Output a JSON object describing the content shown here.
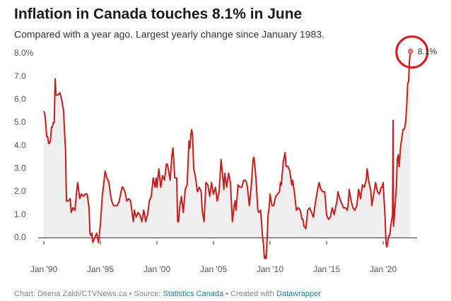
{
  "chart_data": {
    "type": "area-line",
    "title": "Inflation in Canada touches 8.1% in June",
    "subtitle": "Compared with a year ago. Largest yearly change since January 1983.",
    "annotation": "8.1%",
    "color": "#c71e1d",
    "fill": "#efefef",
    "grid": false,
    "x": [
      1990.0,
      1990.08,
      1990.17,
      1990.25,
      1990.33,
      1990.42,
      1990.5,
      1990.58,
      1990.67,
      1990.75,
      1990.83,
      1990.92,
      1991.0,
      1991.08,
      1991.25,
      1991.42,
      1991.58,
      1991.75,
      1991.83,
      1991.92,
      1992.0,
      1992.17,
      1992.33,
      1992.42,
      1992.58,
      1992.75,
      1992.92,
      1993.0,
      1993.17,
      1993.33,
      1993.5,
      1993.67,
      1993.83,
      1994.0,
      1994.08,
      1994.17,
      1994.25,
      1994.33,
      1994.5,
      1994.67,
      1994.83,
      1994.92,
      1995.0,
      1995.17,
      1995.33,
      1995.42,
      1995.58,
      1995.75,
      1995.92,
      1996.0,
      1996.17,
      1996.33,
      1996.5,
      1996.67,
      1996.83,
      1996.92,
      1997.0,
      1997.17,
      1997.33,
      1997.5,
      1997.67,
      1997.83,
      1997.92,
      1998.0,
      1998.17,
      1998.33,
      1998.5,
      1998.67,
      1998.83,
      1998.92,
      1999.0,
      1999.17,
      1999.33,
      1999.5,
      1999.67,
      1999.83,
      1999.92,
      2000.0,
      2000.17,
      2000.33,
      2000.5,
      2000.67,
      2000.83,
      2000.92,
      2001.0,
      2001.17,
      2001.33,
      2001.42,
      2001.58,
      2001.75,
      2001.83,
      2001.92,
      2002.0,
      2002.17,
      2002.33,
      2002.5,
      2002.67,
      2002.83,
      2002.92,
      2003.0,
      2003.08,
      2003.17,
      2003.25,
      2003.42,
      2003.58,
      2003.75,
      2003.92,
      2004.0,
      2004.17,
      2004.33,
      2004.5,
      2004.67,
      2004.83,
      2004.92,
      2005.0,
      2005.17,
      2005.33,
      2005.5,
      2005.67,
      2005.83,
      2005.92,
      2006.0,
      2006.17,
      2006.33,
      2006.5,
      2006.67,
      2006.83,
      2006.92,
      2007.0,
      2007.17,
      2007.33,
      2007.5,
      2007.67,
      2007.83,
      2007.92,
      2008.0,
      2008.17,
      2008.33,
      2008.5,
      2008.58,
      2008.75,
      2008.83,
      2008.92,
      2009.0,
      2009.17,
      2009.33,
      2009.42,
      2009.5,
      2009.58,
      2009.67,
      2009.83,
      2009.92,
      2010.0,
      2010.17,
      2010.33,
      2010.5,
      2010.67,
      2010.83,
      2010.92,
      2011.0,
      2011.17,
      2011.33,
      2011.42,
      2011.58,
      2011.75,
      2011.92,
      2012.0,
      2012.17,
      2012.33,
      2012.5,
      2012.67,
      2012.83,
      2012.92,
      2013.0,
      2013.17,
      2013.33,
      2013.5,
      2013.67,
      2013.83,
      2013.92,
      2014.0,
      2014.17,
      2014.33,
      2014.5,
      2014.67,
      2014.83,
      2014.92,
      2015.0,
      2015.17,
      2015.33,
      2015.5,
      2015.67,
      2015.83,
      2015.92,
      2016.0,
      2016.17,
      2016.33,
      2016.5,
      2016.67,
      2016.83,
      2016.92,
      2017.0,
      2017.17,
      2017.33,
      2017.5,
      2017.67,
      2017.83,
      2017.92,
      2018.0,
      2018.17,
      2018.33,
      2018.5,
      2018.58,
      2018.75,
      2018.92,
      2019.0,
      2019.17,
      2019.33,
      2019.5,
      2019.67,
      2019.83,
      2019.92,
      2020.0,
      2020.17,
      2020.25,
      2020.33,
      2020.5,
      2020.58,
      2020.67,
      2020.83,
      2020.88,
      2020.92,
      2021.0,
      2021.17,
      2021.25,
      2021.33,
      2021.42,
      2021.5,
      2021.58,
      2021.67,
      2021.75,
      2021.83,
      2021.92,
      2022.0,
      2022.08,
      2022.17,
      2022.25,
      2022.33,
      2022.42
    ],
    "values": [
      5.5,
      5.4,
      5.0,
      4.4,
      4.4,
      4.1,
      4.1,
      4.2,
      4.8,
      4.8,
      5.0,
      5.0,
      6.9,
      6.2,
      6.2,
      6.3,
      6.0,
      5.5,
      4.6,
      3.8,
      1.6,
      1.6,
      1.7,
      1.1,
      1.3,
      1.2,
      2.1,
      2.4,
      1.7,
      1.9,
      1.8,
      1.9,
      1.9,
      1.3,
      0.2,
      0.1,
      0.2,
      -0.2,
      0.0,
      0.2,
      -0.2,
      0.2,
      0.6,
      1.8,
      2.5,
      2.9,
      2.6,
      2.4,
      1.8,
      1.6,
      1.4,
      1.4,
      1.4,
      1.6,
      2.0,
      2.2,
      2.2,
      2.0,
      1.6,
      1.7,
      1.6,
      1.0,
      0.7,
      1.2,
      0.9,
      1.1,
      1.0,
      0.7,
      1.2,
      1.0,
      0.7,
      1.0,
      1.6,
      1.8,
      2.6,
      2.2,
      2.6,
      2.2,
      3.0,
      2.2,
      2.7,
      2.5,
      3.2,
      3.2,
      3.0,
      2.5,
      3.6,
      3.9,
      2.6,
      2.6,
      0.7,
      0.7,
      1.3,
      1.8,
      1.1,
      2.1,
      2.3,
      4.2,
      3.9,
      4.5,
      4.7,
      4.3,
      3.0,
      2.6,
      2.0,
      2.2,
      2.0,
      1.2,
      0.7,
      2.4,
      2.3,
      1.8,
      2.4,
      2.1,
      1.9,
      2.2,
      1.6,
      2.0,
      3.4,
      2.6,
      2.1,
      2.8,
      2.2,
      2.8,
      2.4,
      0.7,
      1.4,
      1.6,
      1.2,
      2.3,
      2.2,
      2.2,
      2.5,
      2.5,
      2.4,
      2.2,
      1.4,
      2.2,
      3.4,
      3.5,
      2.6,
      2.0,
      1.2,
      1.1,
      1.2,
      0.1,
      -0.3,
      -0.9,
      -0.8,
      -0.9,
      1.0,
      1.3,
      1.9,
      1.4,
      1.4,
      1.8,
      1.9,
      2.0,
      2.4,
      2.3,
      3.3,
      3.7,
      3.1,
      3.1,
      2.9,
      2.3,
      2.5,
      1.9,
      1.2,
      1.3,
      1.2,
      0.8,
      0.8,
      0.5,
      0.4,
      1.2,
      1.3,
      1.1,
      0.9,
      1.2,
      1.5,
      2.0,
      2.4,
      2.1,
      2.0,
      2.0,
      1.5,
      1.0,
      0.8,
      0.9,
      1.3,
      1.0,
      1.4,
      1.6,
      2.0,
      1.7,
      1.5,
      1.3,
      1.3,
      1.2,
      1.5,
      2.1,
      1.6,
      1.3,
      1.2,
      1.4,
      2.1,
      1.9,
      1.7,
      2.3,
      2.2,
      2.5,
      3.0,
      2.4,
      2.0,
      1.4,
      1.9,
      2.4,
      2.0,
      1.9,
      2.2,
      2.2,
      2.4,
      0.9,
      -0.2,
      -0.4,
      0.1,
      0.1,
      0.5,
      1.0,
      5.1,
      0.5,
      1.0,
      2.2,
      3.4,
      3.6,
      3.1,
      3.7,
      4.1,
      4.4,
      4.7,
      4.7,
      4.8,
      5.1,
      5.7,
      6.7,
      6.8,
      7.7,
      8.1
    ],
    "xlim": [
      1989.5,
      2023
    ],
    "xticks": [
      {
        "value": 1990,
        "label": "Jan '90"
      },
      {
        "value": 1995,
        "label": "Jan '95"
      },
      {
        "value": 2000,
        "label": "Jan '00"
      },
      {
        "value": 2005,
        "label": "Jan '05"
      },
      {
        "value": 2010,
        "label": "Jan '10"
      },
      {
        "value": 2015,
        "label": "Jan '15"
      },
      {
        "value": 2020,
        "label": "Jan '20"
      }
    ],
    "ylim": [
      -1,
      8
    ],
    "yticks": [
      {
        "value": 0,
        "label": "0.0"
      },
      {
        "value": 1,
        "label": "1.0"
      },
      {
        "value": 2,
        "label": "2.0"
      },
      {
        "value": 3,
        "label": "3.0"
      },
      {
        "value": 4,
        "label": "4.0"
      },
      {
        "value": 5,
        "label": "5.0"
      },
      {
        "value": 6,
        "label": "6.0"
      },
      {
        "value": 7,
        "label": "7.0"
      },
      {
        "value": 8,
        "label": "8.0%"
      }
    ],
    "footer": {
      "prefix": "Chart: Deena Zaidi/CTVNews.ca • Source: ",
      "source": "Statistics Canada",
      "middle": " • Created with ",
      "tool": "Datawrapper"
    }
  }
}
